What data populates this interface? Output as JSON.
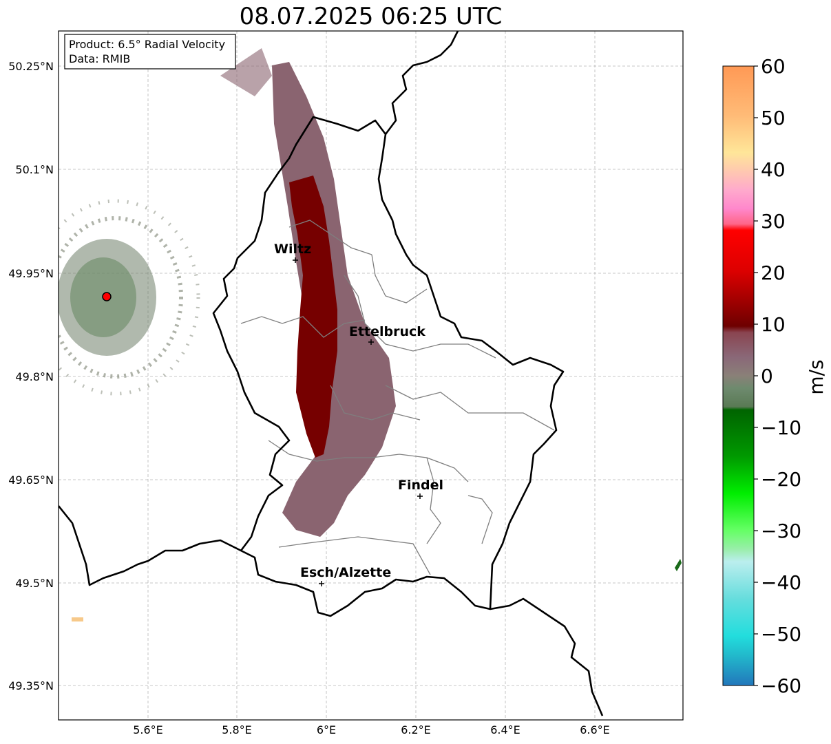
{
  "title": "08.07.2025 06:25 UTC",
  "info": {
    "product": "Product: 6.5° Radial Velocity",
    "data": "Data: RMIB"
  },
  "axes": {
    "lat_ticks": [
      "50.25°N",
      "50.1°N",
      "49.95°N",
      "49.8°N",
      "49.65°N",
      "49.5°N",
      "49.35°N"
    ],
    "lon_ticks": [
      "5.6°E",
      "5.8°E",
      "6°E",
      "6.2°E",
      "6.4°E",
      "6.6°E"
    ],
    "gridlines": true
  },
  "cities": [
    {
      "name": "Wiltz"
    },
    {
      "name": "Ettelbruck"
    },
    {
      "name": "Findel"
    },
    {
      "name": "Esch/Alzette"
    }
  ],
  "colorbar": {
    "unit": "m/s",
    "ticks": [
      "60",
      "50",
      "40",
      "30",
      "20",
      "10",
      "0",
      "−10",
      "−20",
      "−30",
      "−40",
      "−50",
      "−60"
    ],
    "colors": {
      "strong_outbound": "#7a0000",
      "weak_outbound": "#8a6270",
      "weak_inbound": "#5f7f5f",
      "radar_site": "#ff0000"
    }
  }
}
